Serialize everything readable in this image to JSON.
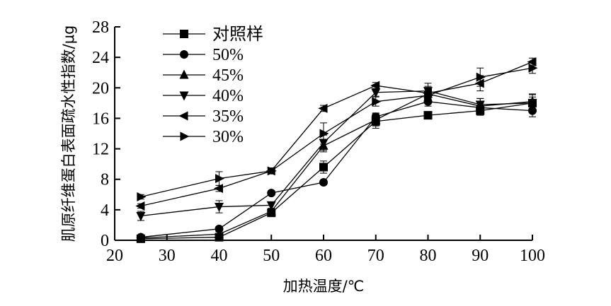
{
  "chart_data": {
    "type": "line",
    "title": "",
    "xlabel": "加热温度/℃",
    "ylabel": "肌原纤维蛋白表面疏水性指数/μg",
    "xlim": [
      20,
      100
    ],
    "ylim": [
      0,
      28
    ],
    "x_ticks": [
      20,
      30,
      40,
      50,
      60,
      70,
      80,
      90,
      100
    ],
    "y_ticks": [
      0,
      4,
      8,
      12,
      16,
      20,
      24,
      28
    ],
    "x": [
      25,
      40,
      50,
      60,
      70,
      80,
      90,
      100
    ],
    "grid": false,
    "legend_position": "top-left",
    "series": [
      {
        "name": "对照样",
        "marker": "square",
        "values": [
          0.2,
          0.4,
          3.6,
          9.6,
          15.6,
          16.4,
          17.0,
          18.0
        ],
        "errors": [
          0.2,
          0.2,
          0.3,
          0.8,
          0.9,
          0.4,
          0.6,
          1.2
        ]
      },
      {
        "name": "50%",
        "marker": "circle",
        "values": [
          0.4,
          1.5,
          6.2,
          7.6,
          16.2,
          18.2,
          17.4,
          17.0
        ],
        "errors": [
          0.2,
          0.3,
          0.3,
          0.3,
          0.5,
          0.6,
          0.6,
          0.8
        ]
      },
      {
        "name": "45%",
        "marker": "triangle-up",
        "values": [
          0.3,
          0.8,
          3.8,
          12.4,
          15.8,
          19.2,
          17.6,
          18.2
        ],
        "errors": [
          0.2,
          0.3,
          0.3,
          0.8,
          0.8,
          1.0,
          1.0,
          0.9
        ]
      },
      {
        "name": "40%",
        "marker": "triangle-down",
        "values": [
          3.2,
          4.4,
          4.6,
          12.8,
          19.4,
          19.6,
          17.8,
          18.0
        ],
        "errors": [
          0.6,
          0.8,
          0.4,
          1.0,
          0.5,
          1.0,
          0.8,
          0.8
        ]
      },
      {
        "name": "35%",
        "marker": "triangle-left",
        "values": [
          4.5,
          6.8,
          9.1,
          17.3,
          20.3,
          19.3,
          20.6,
          23.4
        ],
        "errors": [
          0.3,
          0.4,
          0.3,
          0.4,
          0.4,
          0.6,
          1.0,
          0.5
        ]
      },
      {
        "name": "30%",
        "marker": "triangle-right",
        "values": [
          5.7,
          8.1,
          9.1,
          14.0,
          18.2,
          19.0,
          21.4,
          22.6
        ],
        "errors": [
          0.3,
          0.9,
          0.4,
          1.4,
          0.6,
          0.8,
          1.2,
          0.7
        ]
      }
    ]
  }
}
